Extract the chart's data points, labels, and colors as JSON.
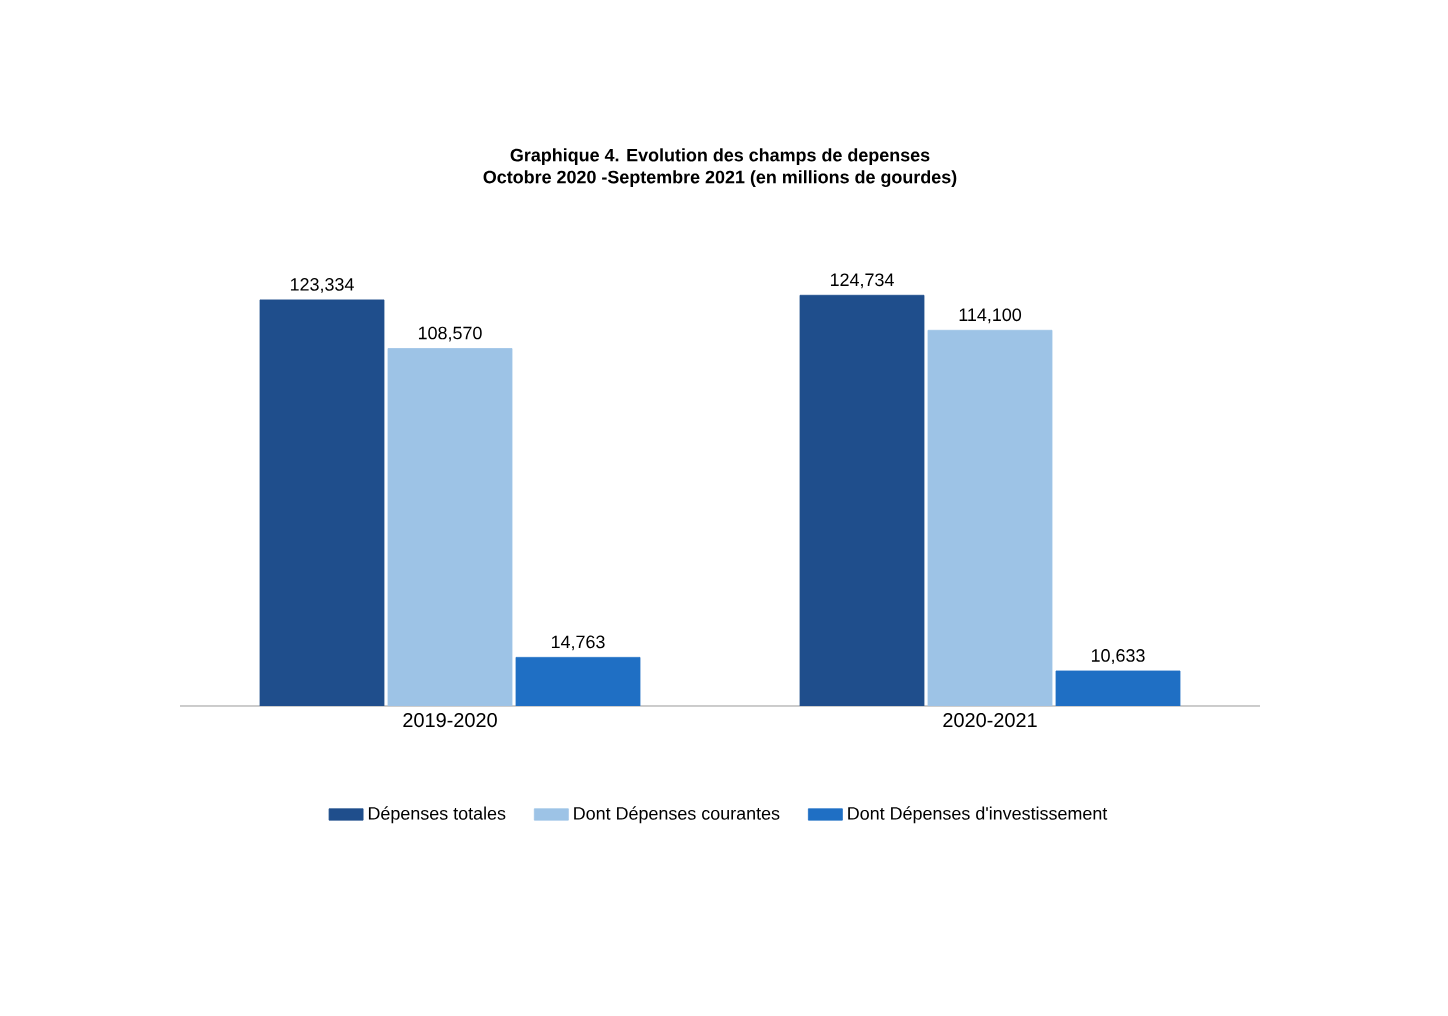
{
  "chart_data": {
    "type": "bar",
    "title": "Graphique 4. Evolution des champs de depenses",
    "subtitle": "Octobre 2020 -Septembre 2021  (en millions de gourdes)",
    "categories": [
      "2019-2020",
      "2020-2021"
    ],
    "series": [
      {
        "name": "Dépenses totales",
        "color": "#1f4e8c",
        "values": [
          123334,
          124734
        ],
        "value_labels": [
          "123,334",
          "124,734"
        ]
      },
      {
        "name": "Dont Dépenses courantes",
        "color": "#9dc3e6",
        "values": [
          108570,
          114100
        ],
        "value_labels": [
          "108,570",
          "114,100"
        ]
      },
      {
        "name": "Dont Dépenses d'investissement",
        "color": "#1f6fc4",
        "values": [
          14763,
          10633
        ],
        "value_labels": [
          "14,763",
          "10,633"
        ]
      }
    ],
    "legend": "bottom"
  }
}
